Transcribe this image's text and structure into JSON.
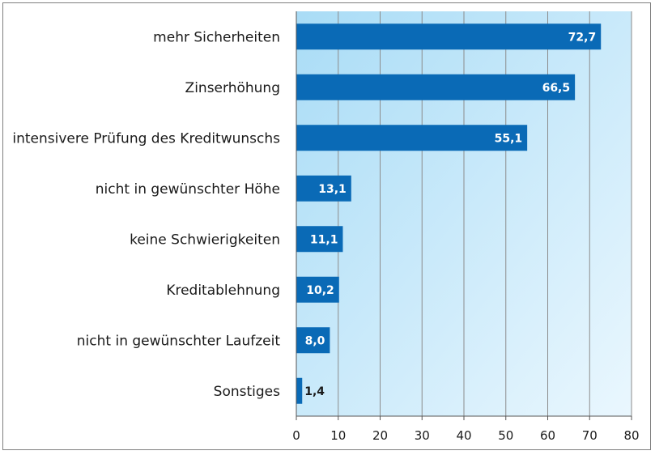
{
  "chart_data": {
    "type": "bar",
    "orientation": "horizontal",
    "categories": [
      "mehr Sicherheiten",
      "Zinserhöhung",
      "intensivere Prüfung des Kreditwunschs",
      "nicht in gewünschter Höhe",
      "keine Schwierigkeiten",
      "Kreditablehnung",
      "nicht in gewünschter Laufzeit",
      "Sonstiges"
    ],
    "values": [
      72.7,
      66.5,
      55.1,
      13.1,
      11.1,
      10.2,
      8.0,
      1.4
    ],
    "value_labels": [
      "72,7",
      "66,5",
      "55,1",
      "13,1",
      "11,1",
      "10,2",
      "8,0",
      "1,4"
    ],
    "xlim": [
      0,
      80
    ],
    "xticks": [
      0,
      10,
      20,
      30,
      40,
      50,
      60,
      70,
      80
    ],
    "title": "",
    "xlabel": "",
    "ylabel": "",
    "grid": "vertical",
    "legend": "none",
    "colors": {
      "bar": "#0a6ab6",
      "plot_bg_start": "#a9dcf6",
      "plot_bg_end": "#eaf7fe",
      "grid": "#8c8c8c"
    }
  }
}
